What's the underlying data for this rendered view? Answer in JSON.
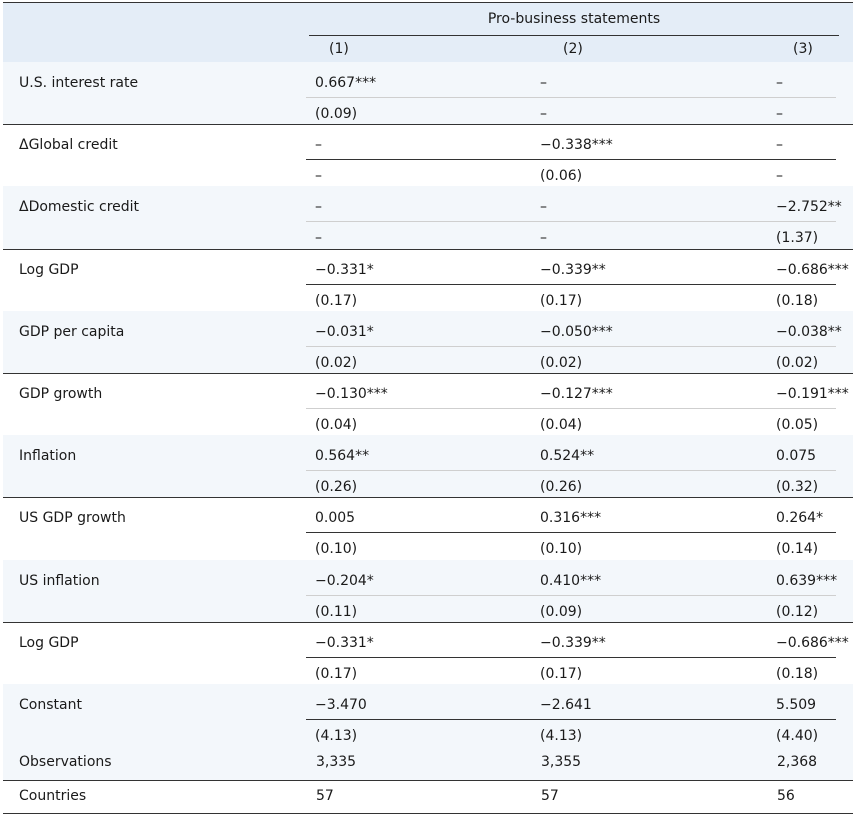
{
  "header": {
    "group_title": "Pro-business statements",
    "columns": [
      "(1)",
      "(2)",
      "(3)"
    ]
  },
  "rows": [
    {
      "label": "U.S. interest rate",
      "coef": [
        "0.667***",
        "–",
        "–"
      ],
      "se": [
        "(0.09)",
        "–",
        "–"
      ]
    },
    {
      "label": "ΔGlobal credit",
      "coef": [
        "–",
        "−0.338***",
        "–"
      ],
      "se": [
        "–",
        "(0.06)",
        "–"
      ]
    },
    {
      "label": "ΔDomestic credit",
      "coef": [
        "–",
        "–",
        "−2.752**"
      ],
      "se": [
        "–",
        "–",
        "(1.37)"
      ]
    },
    {
      "label": "Log GDP",
      "coef": [
        "−0.331*",
        "−0.339**",
        "−0.686***"
      ],
      "se": [
        "(0.17)",
        "(0.17)",
        "(0.18)"
      ]
    },
    {
      "label": "GDP per capita",
      "coef": [
        "−0.031*",
        "−0.050***",
        "−0.038**"
      ],
      "se": [
        "(0.02)",
        "(0.02)",
        "(0.02)"
      ]
    },
    {
      "label": "GDP growth",
      "coef": [
        "−0.130***",
        "−0.127***",
        "−0.191***"
      ],
      "se": [
        "(0.04)",
        "(0.04)",
        "(0.05)"
      ]
    },
    {
      "label": "Inflation",
      "coef": [
        "0.564**",
        "0.524**",
        "0.075"
      ],
      "se": [
        "(0.26)",
        "(0.26)",
        "(0.32)"
      ]
    },
    {
      "label": "US GDP growth",
      "coef": [
        "0.005",
        "0.316***",
        "0.264*"
      ],
      "se": [
        "(0.10)",
        "(0.10)",
        "(0.14)"
      ]
    },
    {
      "label": "US inflation",
      "coef": [
        "−0.204*",
        "0.410***",
        "0.639***"
      ],
      "se": [
        "(0.11)",
        "(0.09)",
        "(0.12)"
      ]
    },
    {
      "label": "Log GDP",
      "coef": [
        "−0.331*",
        "−0.339**",
        "−0.686***"
      ],
      "se": [
        "(0.17)",
        "(0.17)",
        "(0.18)"
      ]
    },
    {
      "label": "Constant",
      "coef": [
        "−3.470",
        "−2.641",
        "5.509"
      ],
      "se": [
        "(4.13)",
        "(4.13)",
        "(4.40)"
      ]
    }
  ],
  "footer": [
    {
      "label": "Observations",
      "values": [
        "3,335",
        "3,355",
        "2,368"
      ]
    },
    {
      "label": "Countries",
      "values": [
        "57",
        "57",
        "56"
      ]
    }
  ]
}
